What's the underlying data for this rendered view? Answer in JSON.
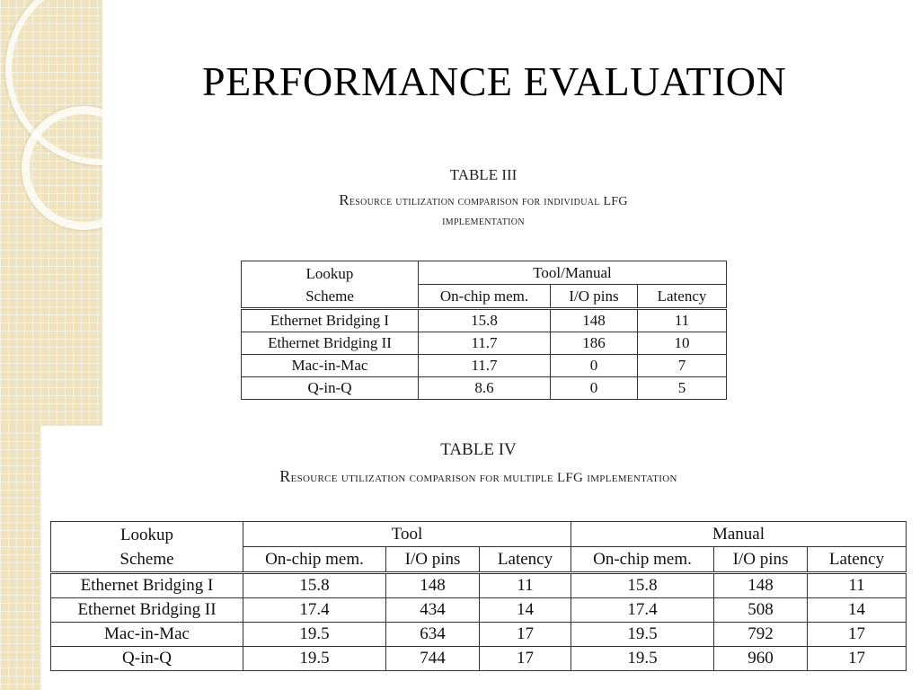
{
  "slide": {
    "title": "PERFORMANCE EVALUATION"
  },
  "table3": {
    "number": "TABLE III",
    "caption_line1_first": "R",
    "caption_line1_rest": "esource utilization comparison for individual LFG",
    "caption_line2": "implementation",
    "header": {
      "lookup_line1": "Lookup",
      "lookup_line2": "Scheme",
      "group": "Tool/Manual",
      "cols": [
        "On-chip mem.",
        "I/O pins",
        "Latency"
      ]
    },
    "rows": [
      [
        "Ethernet Bridging I",
        "15.8",
        "148",
        "11"
      ],
      [
        "Ethernet Bridging II",
        "11.7",
        "186",
        "10"
      ],
      [
        "Mac-in-Mac",
        "11.7",
        "0",
        "7"
      ],
      [
        "Q-in-Q",
        "8.6",
        "0",
        "5"
      ]
    ]
  },
  "table4": {
    "number": "TABLE IV",
    "caption_first": "R",
    "caption_rest": "esource utilization comparison for multiple LFG implementation",
    "header": {
      "lookup_line1": "Lookup",
      "lookup_line2": "Scheme",
      "group_tool": "Tool",
      "group_manual": "Manual",
      "cols": [
        "On-chip mem.",
        "I/O pins",
        "Latency",
        "On-chip mem.",
        "I/O pins",
        "Latency"
      ]
    },
    "rows": [
      [
        "Ethernet Bridging I",
        "15.8",
        "148",
        "11",
        "15.8",
        "148",
        "11"
      ],
      [
        "Ethernet Bridging II",
        "17.4",
        "434",
        "14",
        "17.4",
        "508",
        "14"
      ],
      [
        "Mac-in-Mac",
        "19.5",
        "634",
        "17",
        "19.5",
        "792",
        "17"
      ],
      [
        "Q-in-Q",
        "19.5",
        "744",
        "17",
        "19.5",
        "960",
        "17"
      ]
    ]
  }
}
